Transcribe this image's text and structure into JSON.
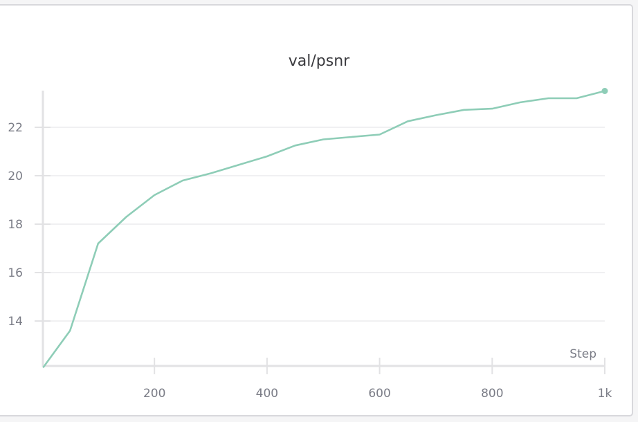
{
  "panel": {
    "title": "val/psnr"
  },
  "colors": {
    "series": "#8ecdb7",
    "grid": "#e8e8ea",
    "axis": "#e2e2e4",
    "tick_text": "#7a7c86",
    "title_text": "#3a3a3e"
  },
  "chart_data": {
    "type": "line",
    "title": "val/psnr",
    "xlabel": "Step",
    "ylabel": "",
    "x_ticks": [
      200,
      400,
      600,
      800,
      1000
    ],
    "x_tick_labels": [
      "200",
      "400",
      "600",
      "800",
      "1k"
    ],
    "y_ticks": [
      14,
      16,
      18,
      20,
      22
    ],
    "y_tick_labels": [
      "14",
      "16",
      "18",
      "20",
      "22"
    ],
    "xlim": [
      0,
      1000
    ],
    "ylim": [
      12.0,
      23.5
    ],
    "grid": true,
    "legend": null,
    "series": [
      {
        "name": "val/psnr",
        "x": [
          3,
          50,
          100,
          150,
          200,
          250,
          300,
          350,
          400,
          450,
          500,
          550,
          600,
          650,
          700,
          750,
          800,
          850,
          900,
          950,
          1000
        ],
        "values": [
          12.1,
          13.6,
          17.2,
          18.3,
          19.2,
          19.8,
          20.1,
          20.45,
          20.8,
          21.25,
          21.5,
          21.6,
          21.7,
          22.25,
          22.5,
          22.72,
          22.77,
          23.03,
          23.2,
          23.2,
          23.5
        ]
      }
    ]
  }
}
